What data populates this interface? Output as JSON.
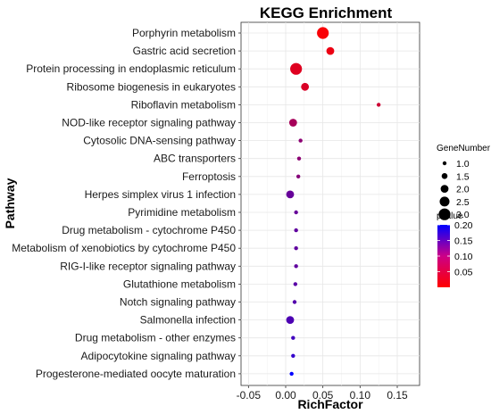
{
  "chart_data": {
    "type": "scatter",
    "title": "KEGG Enrichment",
    "xlabel": "RichFactor",
    "ylabel": "Pathway",
    "xlim": [
      -0.06,
      0.18
    ],
    "x_ticks": [
      -0.05,
      0.0,
      0.05,
      0.1,
      0.15
    ],
    "x_tick_labels": [
      "-0.05",
      "0.00",
      "0.05",
      "0.10",
      "0.15"
    ],
    "grid": true,
    "legend_placement": "right",
    "size_legend": {
      "title": "GeneNumber",
      "values": [
        1.0,
        1.5,
        2.0,
        2.5,
        3.0
      ],
      "labels": [
        "1.0",
        "1.5",
        "2.0",
        "2.5",
        "3.0"
      ]
    },
    "color_legend": {
      "title": "pvalue",
      "min": 0.0,
      "max": 0.2,
      "ticks": [
        0.05,
        0.1,
        0.15,
        0.2
      ],
      "tick_labels": [
        "0.05",
        "0.10",
        "0.15",
        "0.20"
      ],
      "low_color": "#ff0000",
      "high_color": "#0000ff"
    },
    "points": [
      {
        "pathway": "Porphyrin metabolism",
        "richfactor": 0.05,
        "gene_number": 3,
        "pvalue": 0.005
      },
      {
        "pathway": "Gastric acid secretion",
        "richfactor": 0.06,
        "gene_number": 2,
        "pvalue": 0.015
      },
      {
        "pathway": "Protein processing in endoplasmic reticulum",
        "richfactor": 0.014,
        "gene_number": 3,
        "pvalue": 0.025
      },
      {
        "pathway": "Ribosome biogenesis in eukaryotes",
        "richfactor": 0.026,
        "gene_number": 2,
        "pvalue": 0.03
      },
      {
        "pathway": "Riboflavin metabolism",
        "richfactor": 0.125,
        "gene_number": 1,
        "pvalue": 0.04
      },
      {
        "pathway": "NOD-like receptor signaling pathway",
        "richfactor": 0.01,
        "gene_number": 2,
        "pvalue": 0.07
      },
      {
        "pathway": "Cytosolic DNA-sensing pathway",
        "richfactor": 0.02,
        "gene_number": 1,
        "pvalue": 0.09
      },
      {
        "pathway": "ABC transporters",
        "richfactor": 0.018,
        "gene_number": 1,
        "pvalue": 0.09
      },
      {
        "pathway": "Ferroptosis",
        "richfactor": 0.017,
        "gene_number": 1,
        "pvalue": 0.095
      },
      {
        "pathway": "Herpes simplex virus 1 infection",
        "richfactor": 0.006,
        "gene_number": 2,
        "pvalue": 0.12
      },
      {
        "pathway": "Pyrimidine metabolism",
        "richfactor": 0.014,
        "gene_number": 1,
        "pvalue": 0.12
      },
      {
        "pathway": "Drug metabolism - cytochrome P450",
        "richfactor": 0.014,
        "gene_number": 1,
        "pvalue": 0.125
      },
      {
        "pathway": "Metabolism of xenobiotics by cytochrome P450",
        "richfactor": 0.014,
        "gene_number": 1,
        "pvalue": 0.125
      },
      {
        "pathway": "RIG-I-like receptor signaling pathway",
        "richfactor": 0.014,
        "gene_number": 1,
        "pvalue": 0.125
      },
      {
        "pathway": "Glutathione metabolism",
        "richfactor": 0.013,
        "gene_number": 1,
        "pvalue": 0.13
      },
      {
        "pathway": "Notch signaling pathway",
        "richfactor": 0.012,
        "gene_number": 1,
        "pvalue": 0.135
      },
      {
        "pathway": "Salmonella infection",
        "richfactor": 0.006,
        "gene_number": 2,
        "pvalue": 0.14
      },
      {
        "pathway": "Drug metabolism - other enzymes",
        "richfactor": 0.01,
        "gene_number": 1,
        "pvalue": 0.15
      },
      {
        "pathway": "Adipocytokine signaling pathway",
        "richfactor": 0.01,
        "gene_number": 1,
        "pvalue": 0.16
      },
      {
        "pathway": "Progesterone-mediated oocyte maturation",
        "richfactor": 0.008,
        "gene_number": 1,
        "pvalue": 0.2
      }
    ]
  }
}
